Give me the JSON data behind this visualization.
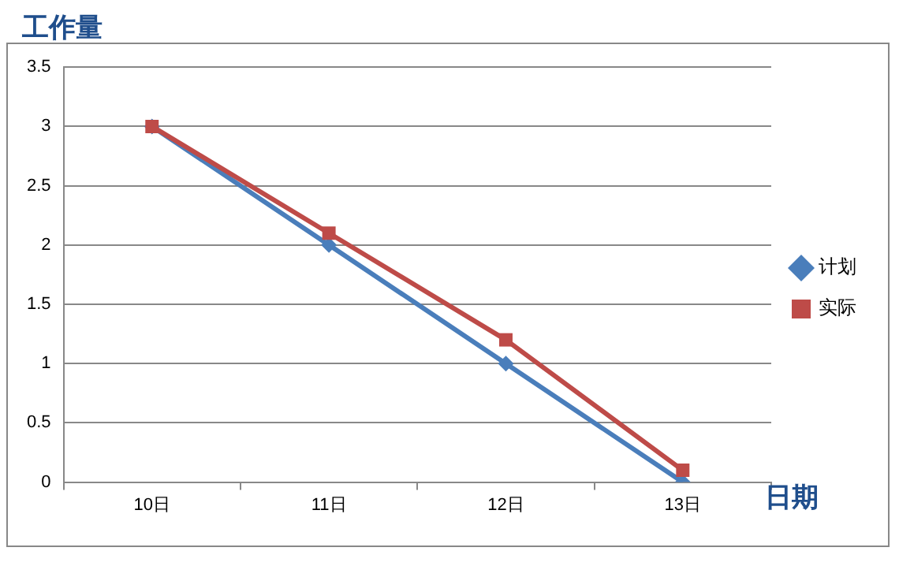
{
  "chart_data": {
    "type": "line",
    "xlabel": "日期",
    "ylabel": "工作量",
    "categories": [
      "10日",
      "11日",
      "12日",
      "13日"
    ],
    "series": [
      {
        "name": "计划",
        "color": "#4a7ebb",
        "values": [
          3,
          2,
          1,
          0
        ],
        "marker": "diamond"
      },
      {
        "name": "实际",
        "color": "#be4b48",
        "values": [
          3,
          2.1,
          1.2,
          0.1
        ],
        "marker": "square"
      }
    ],
    "ylim": [
      0,
      3.5
    ],
    "yticks": [
      0,
      0.5,
      1,
      1.5,
      2,
      2.5,
      3,
      3.5
    ],
    "grid": "y",
    "legend": "right"
  }
}
